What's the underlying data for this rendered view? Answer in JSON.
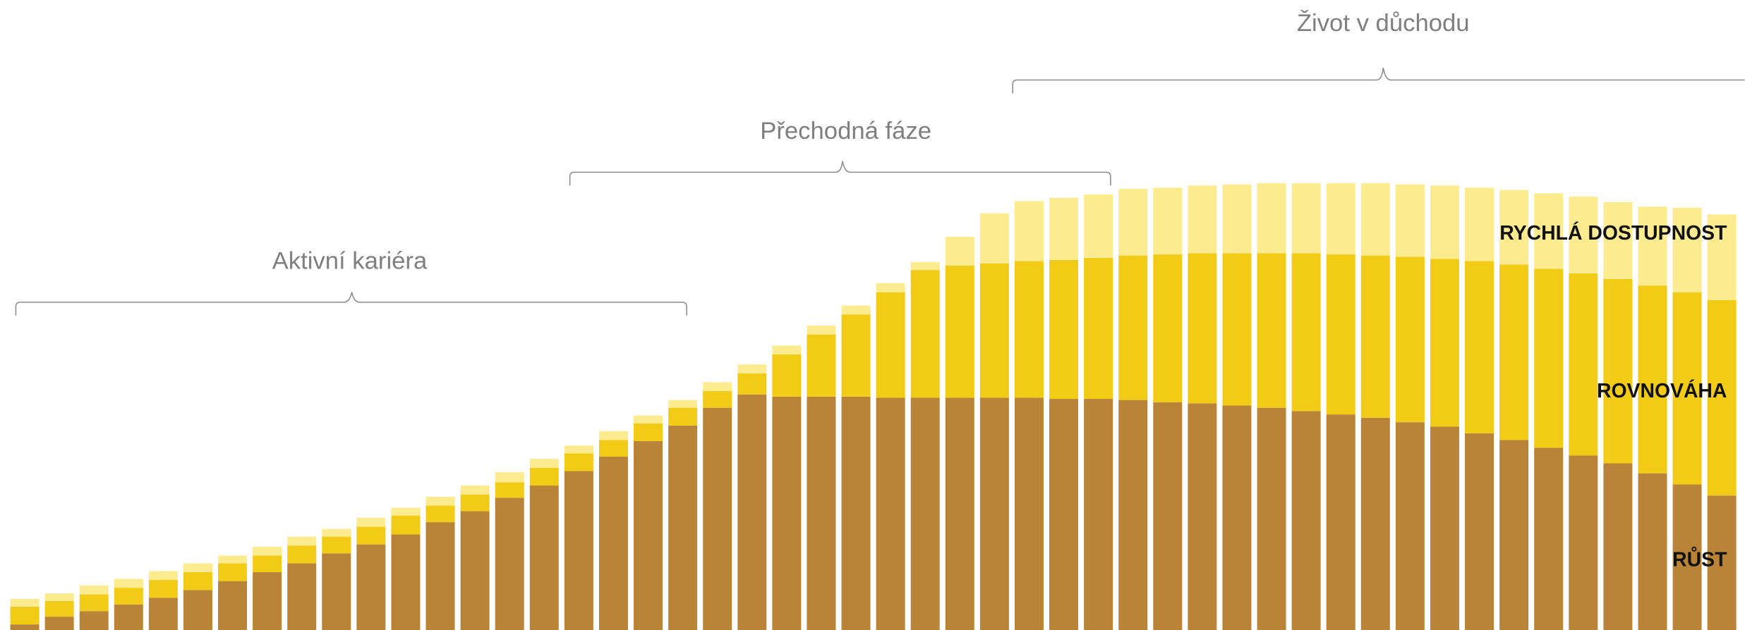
{
  "chart_data": {
    "type": "stacked_bar",
    "annotations": [
      "Aktivní kariéra",
      "Přechodná fáze",
      "Život v důchodu"
    ],
    "ylim": [
      0,
      567
    ],
    "series": [
      {
        "name": "RŮST",
        "color": "#b98437",
        "values": [
          5,
          12,
          17,
          23,
          29,
          36,
          44,
          52,
          60,
          69,
          77,
          86,
          97,
          107,
          119,
          130,
          143,
          156,
          170,
          184,
          200,
          212,
          210,
          210,
          210,
          209,
          209,
          209,
          209,
          209,
          208,
          208,
          207,
          205,
          204,
          202,
          200,
          197,
          194,
          191,
          187,
          183,
          177,
          171,
          164,
          157,
          150,
          141,
          131,
          121
        ]
      },
      {
        "name": "ROVNOVÁHA",
        "color": "#f2cb17",
        "values": [
          16,
          14,
          15,
          15,
          16,
          16,
          16,
          15,
          16,
          15,
          16,
          17,
          15,
          15,
          14,
          16,
          16,
          15,
          16,
          16,
          15,
          19,
          38,
          56,
          74,
          95,
          115,
          119,
          121,
          123,
          125,
          127,
          130,
          133,
          135,
          137,
          139,
          142,
          144,
          146,
          149,
          151,
          155,
          158,
          161,
          164,
          166,
          169,
          173,
          176
        ]
      },
      {
        "name": "RYCHLÁ DOSTUPNOST",
        "color": "#fdeb8f",
        "values": [
          7,
          7,
          8,
          8,
          8,
          8,
          7,
          8,
          8,
          7,
          8,
          7,
          8,
          8,
          9,
          8,
          7,
          8,
          7,
          7,
          8,
          8,
          8,
          8,
          8,
          8,
          7,
          26,
          45,
          54,
          56,
          57,
          60,
          60,
          61,
          62,
          63,
          63,
          64,
          65,
          65,
          66,
          66,
          67,
          68,
          69,
          69,
          71,
          76,
          77
        ]
      }
    ]
  }
}
